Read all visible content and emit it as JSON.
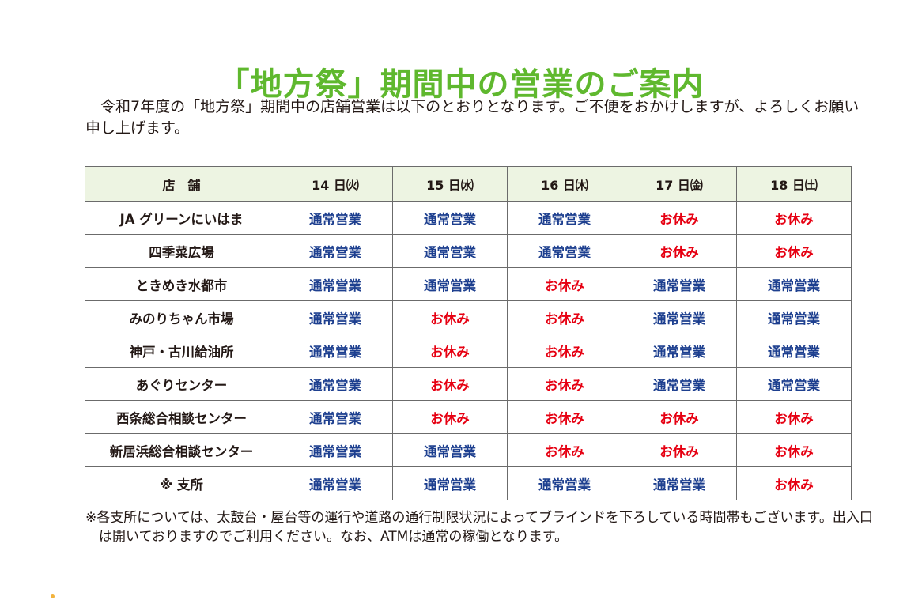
{
  "title": "「地方祭」期間中の営業のご案内",
  "intro": "令和7年度の「地方祭」期間中の店舗営業は以下のとおりとなります。ご不便をおかけしますが、よろしくお願い申し上げます。",
  "table": {
    "headers": [
      "店　舗",
      "14 日㈫",
      "15 日㈬",
      "16 日㈭",
      "17 日㈮",
      "18 日㈯"
    ],
    "rows": [
      {
        "store": "JA グリーンにいはま",
        "cells": [
          "通常営業",
          "通常営業",
          "通常営業",
          "お休み",
          "お休み"
        ]
      },
      {
        "store": "四季菜広場",
        "cells": [
          "通常営業",
          "通常営業",
          "通常営業",
          "お休み",
          "お休み"
        ]
      },
      {
        "store": "ときめき水都市",
        "cells": [
          "通常営業",
          "通常営業",
          "お休み",
          "通常営業",
          "通常営業"
        ]
      },
      {
        "store": "みのりちゃん市場",
        "cells": [
          "通常営業",
          "お休み",
          "お休み",
          "通常営業",
          "通常営業"
        ]
      },
      {
        "store": "神戸・古川給油所",
        "cells": [
          "通常営業",
          "お休み",
          "お休み",
          "通常営業",
          "通常営業"
        ]
      },
      {
        "store": "あぐりセンター",
        "cells": [
          "通常営業",
          "お休み",
          "お休み",
          "通常営業",
          "通常営業"
        ]
      },
      {
        "store": "西条総合相談センター",
        "cells": [
          "通常営業",
          "お休み",
          "お休み",
          "お休み",
          "お休み"
        ]
      },
      {
        "store": "新居浜総合相談センター",
        "cells": [
          "通常営業",
          "通常営業",
          "お休み",
          "お休み",
          "お休み"
        ]
      },
      {
        "store": "※ 支所",
        "cells": [
          "通常営業",
          "通常営業",
          "通常営業",
          "通常営業",
          "お休み"
        ]
      }
    ]
  },
  "note": "※各支所については、太鼓台・屋台等の運行や道路の通行制限状況によってブラインドを下ろしている時間帯もございます。出入口は開いておりますのでご利用ください。なお、ATMは通常の稼働となります。",
  "colors": {
    "title_green": "#5fb82e",
    "open_blue": "#1d3f8f",
    "closed_red": "#e60012",
    "header_bg": "#edf4e2"
  }
}
